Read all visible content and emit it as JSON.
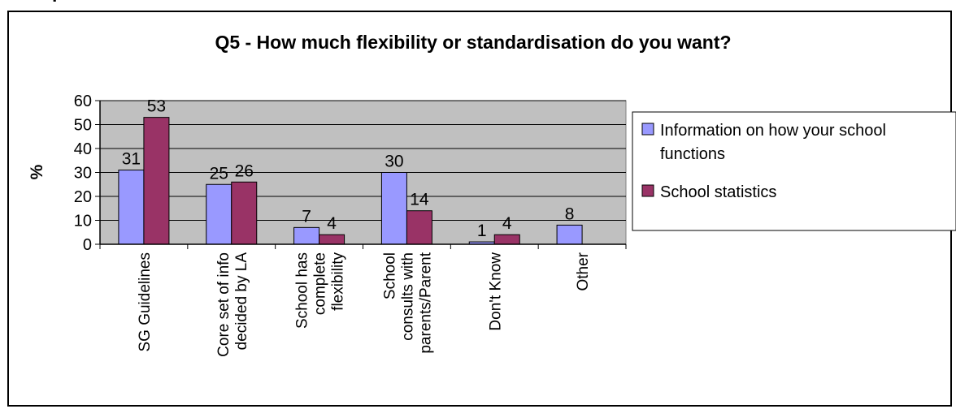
{
  "header_fragment": "p",
  "chart_data": {
    "type": "bar",
    "title": "Q5 - How much flexibility or standardisation do you want?",
    "xlabel": "",
    "ylabel": "%",
    "ylim": [
      0,
      60
    ],
    "yticks": [
      0,
      10,
      20,
      30,
      40,
      50,
      60
    ],
    "categories": [
      [
        "SG Guidelines"
      ],
      [
        "Core set of info",
        "decided by LA"
      ],
      [
        "School has",
        "complete",
        "flexibility"
      ],
      [
        "School",
        "consults with",
        "parents/Parent"
      ],
      [
        "Don't Know"
      ],
      [
        "Other"
      ]
    ],
    "series": [
      {
        "name_lines": [
          "Information on how your school",
          "functions"
        ],
        "color": "#9999ff",
        "values": [
          31,
          25,
          7,
          30,
          1,
          8
        ]
      },
      {
        "name_lines": [
          "School statistics"
        ],
        "color": "#993366",
        "values": [
          53,
          26,
          4,
          14,
          4,
          null
        ]
      }
    ],
    "grid": true,
    "plot_background": "#c0c0c0",
    "legend_position": "right"
  }
}
